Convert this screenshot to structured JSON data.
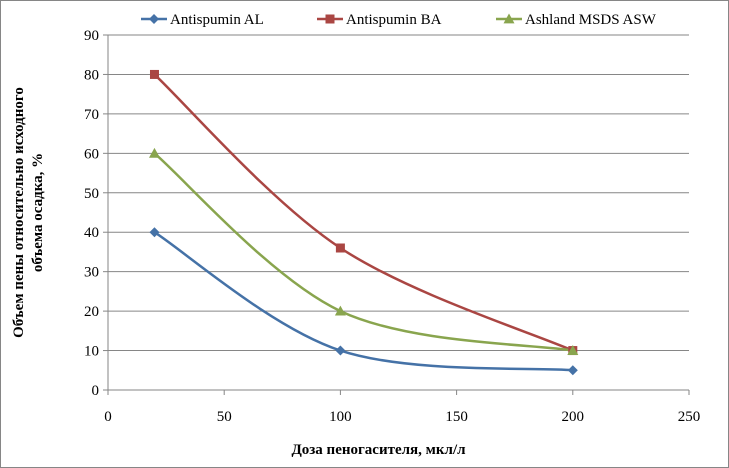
{
  "chart_data": {
    "type": "line",
    "title": "",
    "xlabel": "Доза пеногасителя, мкл/л",
    "ylabel_lines": [
      "Объем пены относительно исходного",
      "объема осадка, %"
    ],
    "xlim": [
      0,
      250
    ],
    "ylim": [
      0,
      90
    ],
    "x_ticks": [
      0,
      50,
      100,
      150,
      200,
      250
    ],
    "y_ticks": [
      0,
      10,
      20,
      30,
      40,
      50,
      60,
      70,
      80,
      90
    ],
    "grid": "horizontal",
    "legend_position": "top",
    "series": [
      {
        "name": "Antispumin AL",
        "color": "#4572A7",
        "marker": "diamond",
        "x": [
          20,
          100,
          200
        ],
        "y": [
          40,
          10,
          5
        ]
      },
      {
        "name": "Antispumin BA",
        "color": "#AA4643",
        "marker": "square",
        "x": [
          20,
          100,
          200
        ],
        "y": [
          80,
          36,
          10
        ]
      },
      {
        "name": "Ashland MSDS ASW",
        "color": "#89A54E",
        "marker": "triangle",
        "x": [
          20,
          100,
          200
        ],
        "y": [
          60,
          20,
          10
        ]
      }
    ]
  }
}
